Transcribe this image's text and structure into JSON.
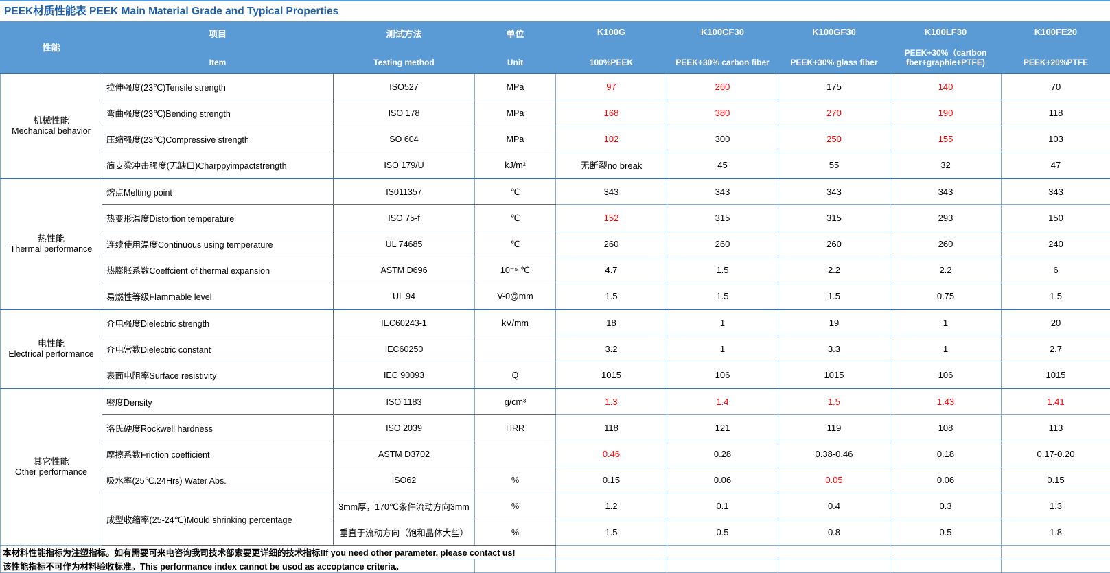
{
  "title": "PEEK材质性能表 PEEK Main Material Grade and Typical Properties",
  "colors": {
    "header_bg": "#5B9BD5",
    "header_text": "#FFFFFF",
    "title_text": "#1F5FA8",
    "grid_blue": "#7FACDC",
    "grid_dark": "#5F6B76",
    "group_separator": "#41719C",
    "highlight_red": "#FF0000"
  },
  "header": {
    "perf": "性能",
    "columns": [
      {
        "zh": "项目",
        "en": "Item"
      },
      {
        "zh": "测试方法",
        "en": "Testing method"
      },
      {
        "zh": "单位",
        "en": "Unit"
      },
      {
        "zh": "K100G",
        "en": "100%PEEK"
      },
      {
        "zh": "K100CF30",
        "en": "PEEK+30% carbon fiber"
      },
      {
        "zh": "K100GF30",
        "en": "PEEK+30% glass fiber"
      },
      {
        "zh": "K100LF30",
        "en": "PEEK+30%（cartbon fber+graphie+PTFE)"
      },
      {
        "zh": "K100FE20",
        "en": "PEEK+20%PTFE"
      }
    ]
  },
  "groups": [
    {
      "zh": "机械性能",
      "en": "Mechanical behavior",
      "rows": [
        {
          "item": "拉伸强度(23℃)Tensile strength",
          "method": "ISO527",
          "unit": "MPa",
          "values": [
            "97",
            "260",
            "175",
            "140",
            "70"
          ],
          "red": [
            true,
            true,
            false,
            true,
            false
          ]
        },
        {
          "item": "弯曲强度(23℃)Bending strength",
          "method": "ISO 178",
          "unit": "MPa",
          "values": [
            "168",
            "380",
            "270",
            "190",
            "118"
          ],
          "red": [
            true,
            true,
            true,
            true,
            false
          ]
        },
        {
          "item": "压缩强度(23℃)Compressive strength",
          "method": "SO 604",
          "unit": "MPa",
          "values": [
            "102",
            "300",
            "250",
            "155",
            "103"
          ],
          "red": [
            true,
            false,
            true,
            true,
            false
          ]
        },
        {
          "item": "简支梁冲击强度(无缺口)Charppyimpactstrength",
          "method": "ISO 179/U",
          "unit": "kJ/m²",
          "values": [
            "无断裂no break",
            "45",
            "55",
            "32",
            "47"
          ],
          "red": [
            false,
            false,
            false,
            false,
            false
          ]
        }
      ]
    },
    {
      "zh": "热性能",
      "en": "Thermal performance",
      "rows": [
        {
          "item": "熔点Melting point",
          "method": "IS011357",
          "unit": "℃",
          "values": [
            "343",
            "343",
            "343",
            "343",
            "343"
          ],
          "red": [
            false,
            false,
            false,
            false,
            false
          ]
        },
        {
          "item": "热变形温度Distortion temperature",
          "method": "ISO 75-f",
          "unit": "℃",
          "values": [
            "152",
            "315",
            "315",
            "293",
            "150"
          ],
          "red": [
            true,
            false,
            false,
            false,
            false
          ]
        },
        {
          "item": "连续使用温度Continuous using temperature",
          "method": "UL 74685",
          "unit": "℃",
          "values": [
            "260",
            "260",
            "260",
            "260",
            "240"
          ],
          "red": [
            false,
            false,
            false,
            false,
            false
          ]
        },
        {
          "item": "热膨胀系数Coeffcient of thermal expansion",
          "method": "ASTM D696",
          "unit": "10⁻⁵ ℃",
          "values": [
            "4.7",
            "1.5",
            "2.2",
            "2.2",
            "6"
          ],
          "red": [
            false,
            false,
            false,
            false,
            false
          ]
        },
        {
          "item": "易燃性等级Flammable level",
          "method": "UL 94",
          "unit": "V-0@mm",
          "values": [
            "1.5",
            "1.5",
            "1.5",
            "0.75",
            "1.5"
          ],
          "red": [
            false,
            false,
            false,
            false,
            false
          ]
        }
      ]
    },
    {
      "zh": "电性能",
      "en": "Electrical performance",
      "rows": [
        {
          "item": "介电强度Dielectric strength",
          "method": "IEC60243-1",
          "unit": "kV/mm",
          "values": [
            "18",
            "1",
            "19",
            "1",
            "20"
          ],
          "red": [
            false,
            false,
            false,
            false,
            false
          ]
        },
        {
          "item": "介电常数Dielectric constant",
          "method": "IEC60250",
          "unit": "",
          "values": [
            "3.2",
            "1",
            "3.3",
            "1",
            "2.7"
          ],
          "red": [
            false,
            false,
            false,
            false,
            false
          ]
        },
        {
          "item": "表面电阻率Surface resistivity",
          "method": "IEC 90093",
          "unit": "Q",
          "values": [
            "1015",
            "106",
            "1015",
            "106",
            "1015"
          ],
          "red": [
            false,
            false,
            false,
            false,
            false
          ]
        }
      ]
    },
    {
      "zh": "其它性能",
      "en": "Other performance",
      "rows": [
        {
          "item": "密度Density",
          "method": "ISO 1183",
          "unit": "g/cm³",
          "values": [
            "1.3",
            "1.4",
            "1.5",
            "1.43",
            "1.41"
          ],
          "red": [
            true,
            true,
            true,
            true,
            true
          ]
        },
        {
          "item": "洛氏硬度Rockwell hardness",
          "method": "ISO 2039",
          "unit": "HRR",
          "values": [
            "118",
            "121",
            "119",
            "108",
            "113"
          ],
          "red": [
            false,
            false,
            false,
            false,
            false
          ]
        },
        {
          "item": "摩擦系数Friction coefficient",
          "method": "ASTM D3702",
          "unit": "",
          "values": [
            "0.46",
            "0.28",
            "0.38-0.46",
            "0.18",
            "0.17-0.20"
          ],
          "red": [
            true,
            false,
            false,
            false,
            false
          ]
        },
        {
          "item": "吸水率(25℃.24Hrs) Water Abs.",
          "method": "ISO62",
          "unit": "%",
          "values": [
            "0.15",
            "0.06",
            "0.05",
            "0.06",
            "0.15"
          ],
          "red": [
            false,
            false,
            true,
            false,
            false
          ]
        },
        {
          "item": "成型收缩率(25-24℃)Mould shrinking percentage",
          "item_rowspan": 2,
          "method": "3mm厚，170℃条件流动方向3mm",
          "unit": "%",
          "values": [
            "1.2",
            "0.1",
            "0.4",
            "0.3",
            "1.3"
          ],
          "red": [
            false,
            false,
            false,
            false,
            false
          ]
        },
        {
          "item": null,
          "method": "垂直于流动方向（饱和晶体大些）",
          "unit": "%",
          "values": [
            "1.5",
            "0.5",
            "0.8",
            "0.5",
            "1.8"
          ],
          "red": [
            false,
            false,
            false,
            false,
            false
          ]
        }
      ]
    }
  ],
  "footer": {
    "line1": "本材料性能指标为注塑指标。如有需要可来电咨询我司技术部索要更详细的技术指标!If you need other parameter, please contact us!",
    "line2": "该性能指标不可作为材料验收标准。This performance index cannot be usod as accoptance criteria。"
  }
}
